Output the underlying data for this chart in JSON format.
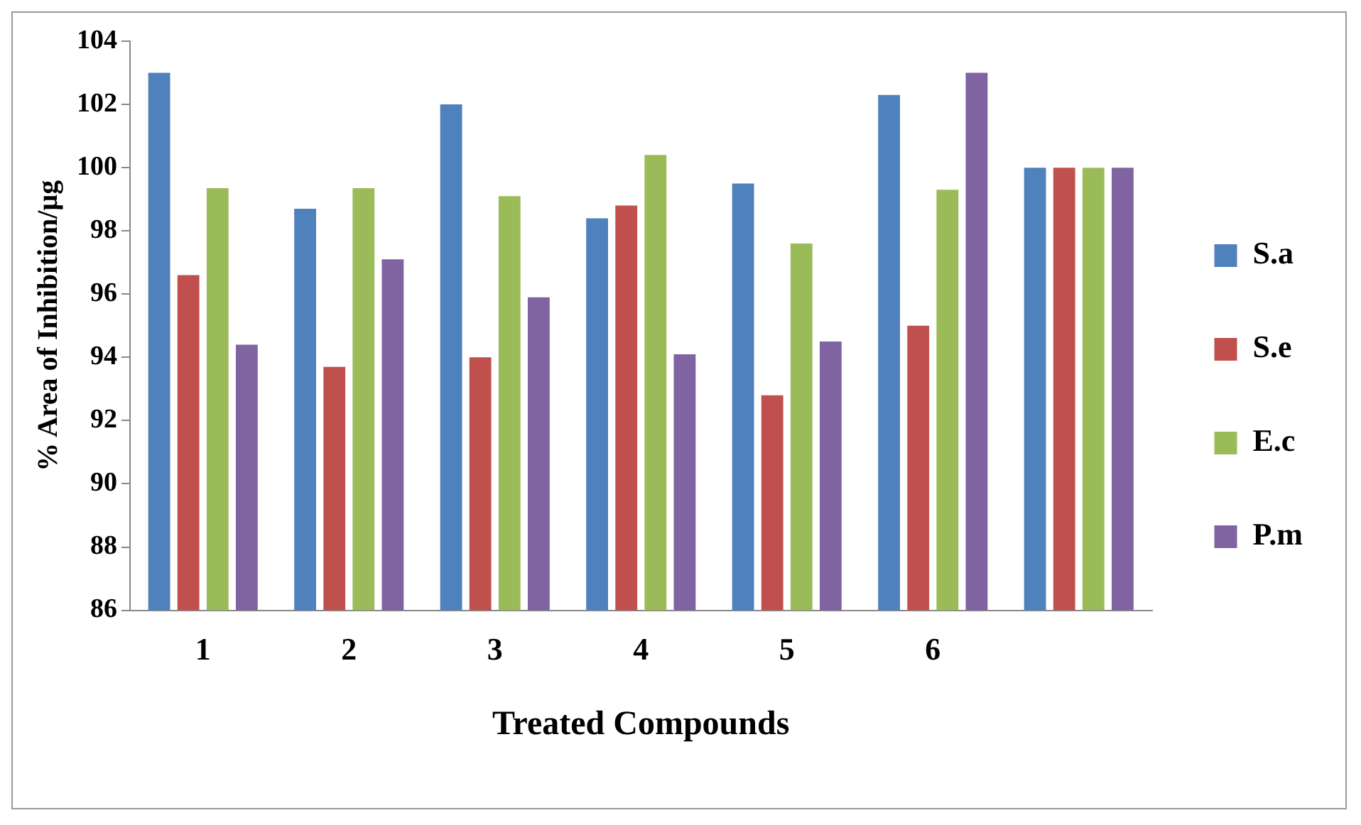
{
  "chart_data": {
    "type": "bar",
    "xlabel": "Treated Compounds",
    "ylabel": "% Area of Inhibition/µg",
    "categories": [
      "1",
      "2",
      "3",
      "4",
      "5",
      "6",
      null
    ],
    "series": [
      {
        "name": "S.a",
        "color": "#4f81bd",
        "values": [
          103,
          98.7,
          102,
          98.4,
          99.5,
          102.3,
          100
        ]
      },
      {
        "name": "S.e",
        "color": "#c0504d",
        "values": [
          96.6,
          93.7,
          94,
          98.8,
          92.8,
          95,
          100
        ]
      },
      {
        "name": "E.c",
        "color": "#9bbb59",
        "values": [
          99.35,
          99.35,
          99.1,
          100.4,
          97.6,
          99.3,
          100
        ]
      },
      {
        "name": "P.m",
        "color": "#8064a2",
        "values": [
          94.4,
          97.1,
          95.9,
          94.1,
          94.5,
          103,
          100
        ]
      }
    ],
    "ylim": [
      86,
      104
    ],
    "yticks": [
      86,
      88,
      90,
      92,
      94,
      96,
      98,
      100,
      102,
      104
    ],
    "grid": false,
    "legend": "right"
  }
}
